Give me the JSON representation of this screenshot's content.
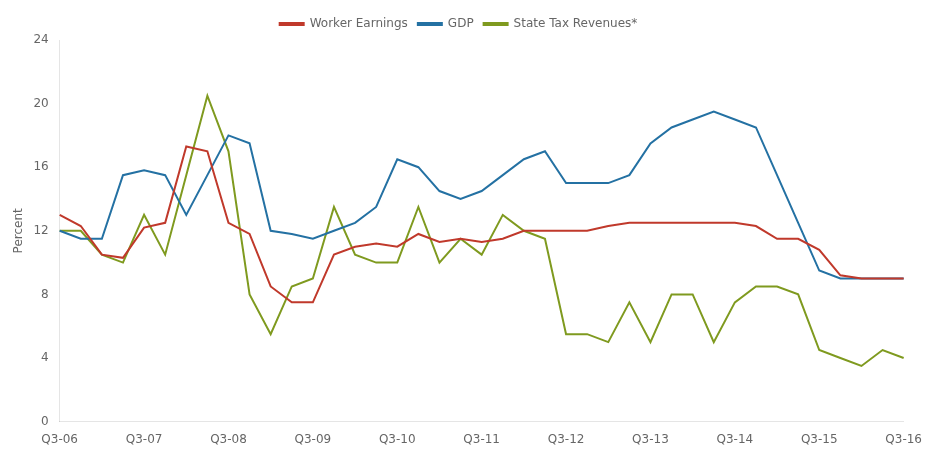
{
  "chart_data": {
    "type": "line",
    "ylabel": "Percent",
    "categories": [
      "Q3-06",
      null,
      null,
      null,
      "Q3-07",
      null,
      null,
      null,
      "Q3-08",
      null,
      null,
      null,
      "Q3-09",
      null,
      null,
      null,
      "Q3-10",
      null,
      null,
      null,
      "Q3-11",
      null,
      null,
      null,
      "Q3-12",
      null,
      null,
      null,
      "Q3-13",
      null,
      null,
      null,
      "Q3-14",
      null,
      null,
      null,
      "Q3-15",
      null,
      null,
      null,
      "Q3-16"
    ],
    "series": [
      {
        "name": "Worker Earnings",
        "color": "#c0392b",
        "values": [
          13.0,
          12.3,
          10.5,
          10.3,
          12.2,
          12.5,
          17.3,
          17.0,
          12.5,
          11.8,
          8.5,
          7.5,
          7.5,
          10.5,
          11.0,
          11.2,
          11.0,
          11.8,
          11.3,
          11.5,
          11.3,
          11.5,
          12.0,
          12.0,
          12.0,
          12.0,
          12.3,
          12.5,
          12.5,
          12.5,
          12.5,
          12.5,
          12.5,
          12.3,
          11.5,
          11.5,
          10.8,
          9.2,
          9.0,
          9.0,
          9.0
        ]
      },
      {
        "name": "GDP",
        "color": "#2471a3",
        "values": [
          12.0,
          11.5,
          11.5,
          15.5,
          15.8,
          15.5,
          13.0,
          15.5,
          18.0,
          17.5,
          12.0,
          11.8,
          11.5,
          12.0,
          12.5,
          13.5,
          16.5,
          16.0,
          14.5,
          14.0,
          14.5,
          15.5,
          16.5,
          17.0,
          15.0,
          15.0,
          15.0,
          15.5,
          17.5,
          18.5,
          19.0,
          19.5,
          19.0,
          18.5,
          15.5,
          12.5,
          9.5,
          9.0,
          9.0,
          9.0,
          9.0
        ]
      },
      {
        "name": "State Tax Revenues*",
        "color": "#7f9a1f",
        "values": [
          12.0,
          12.0,
          10.5,
          10.0,
          13.0,
          10.5,
          15.5,
          20.5,
          17.0,
          8.0,
          5.5,
          8.5,
          9.0,
          13.5,
          10.5,
          10.0,
          10.0,
          13.5,
          10.0,
          11.5,
          10.5,
          13.0,
          12.0,
          11.5,
          5.5,
          5.5,
          5.0,
          7.5,
          5.0,
          8.0,
          8.0,
          5.0,
          7.5,
          8.5,
          8.5,
          8.0,
          4.5,
          4.0,
          3.5,
          4.5,
          4.0
        ]
      }
    ],
    "ylim": [
      0,
      24
    ],
    "yticks": [
      0,
      4,
      8,
      12,
      16,
      20,
      24
    ],
    "grid": false,
    "legend": "top"
  }
}
